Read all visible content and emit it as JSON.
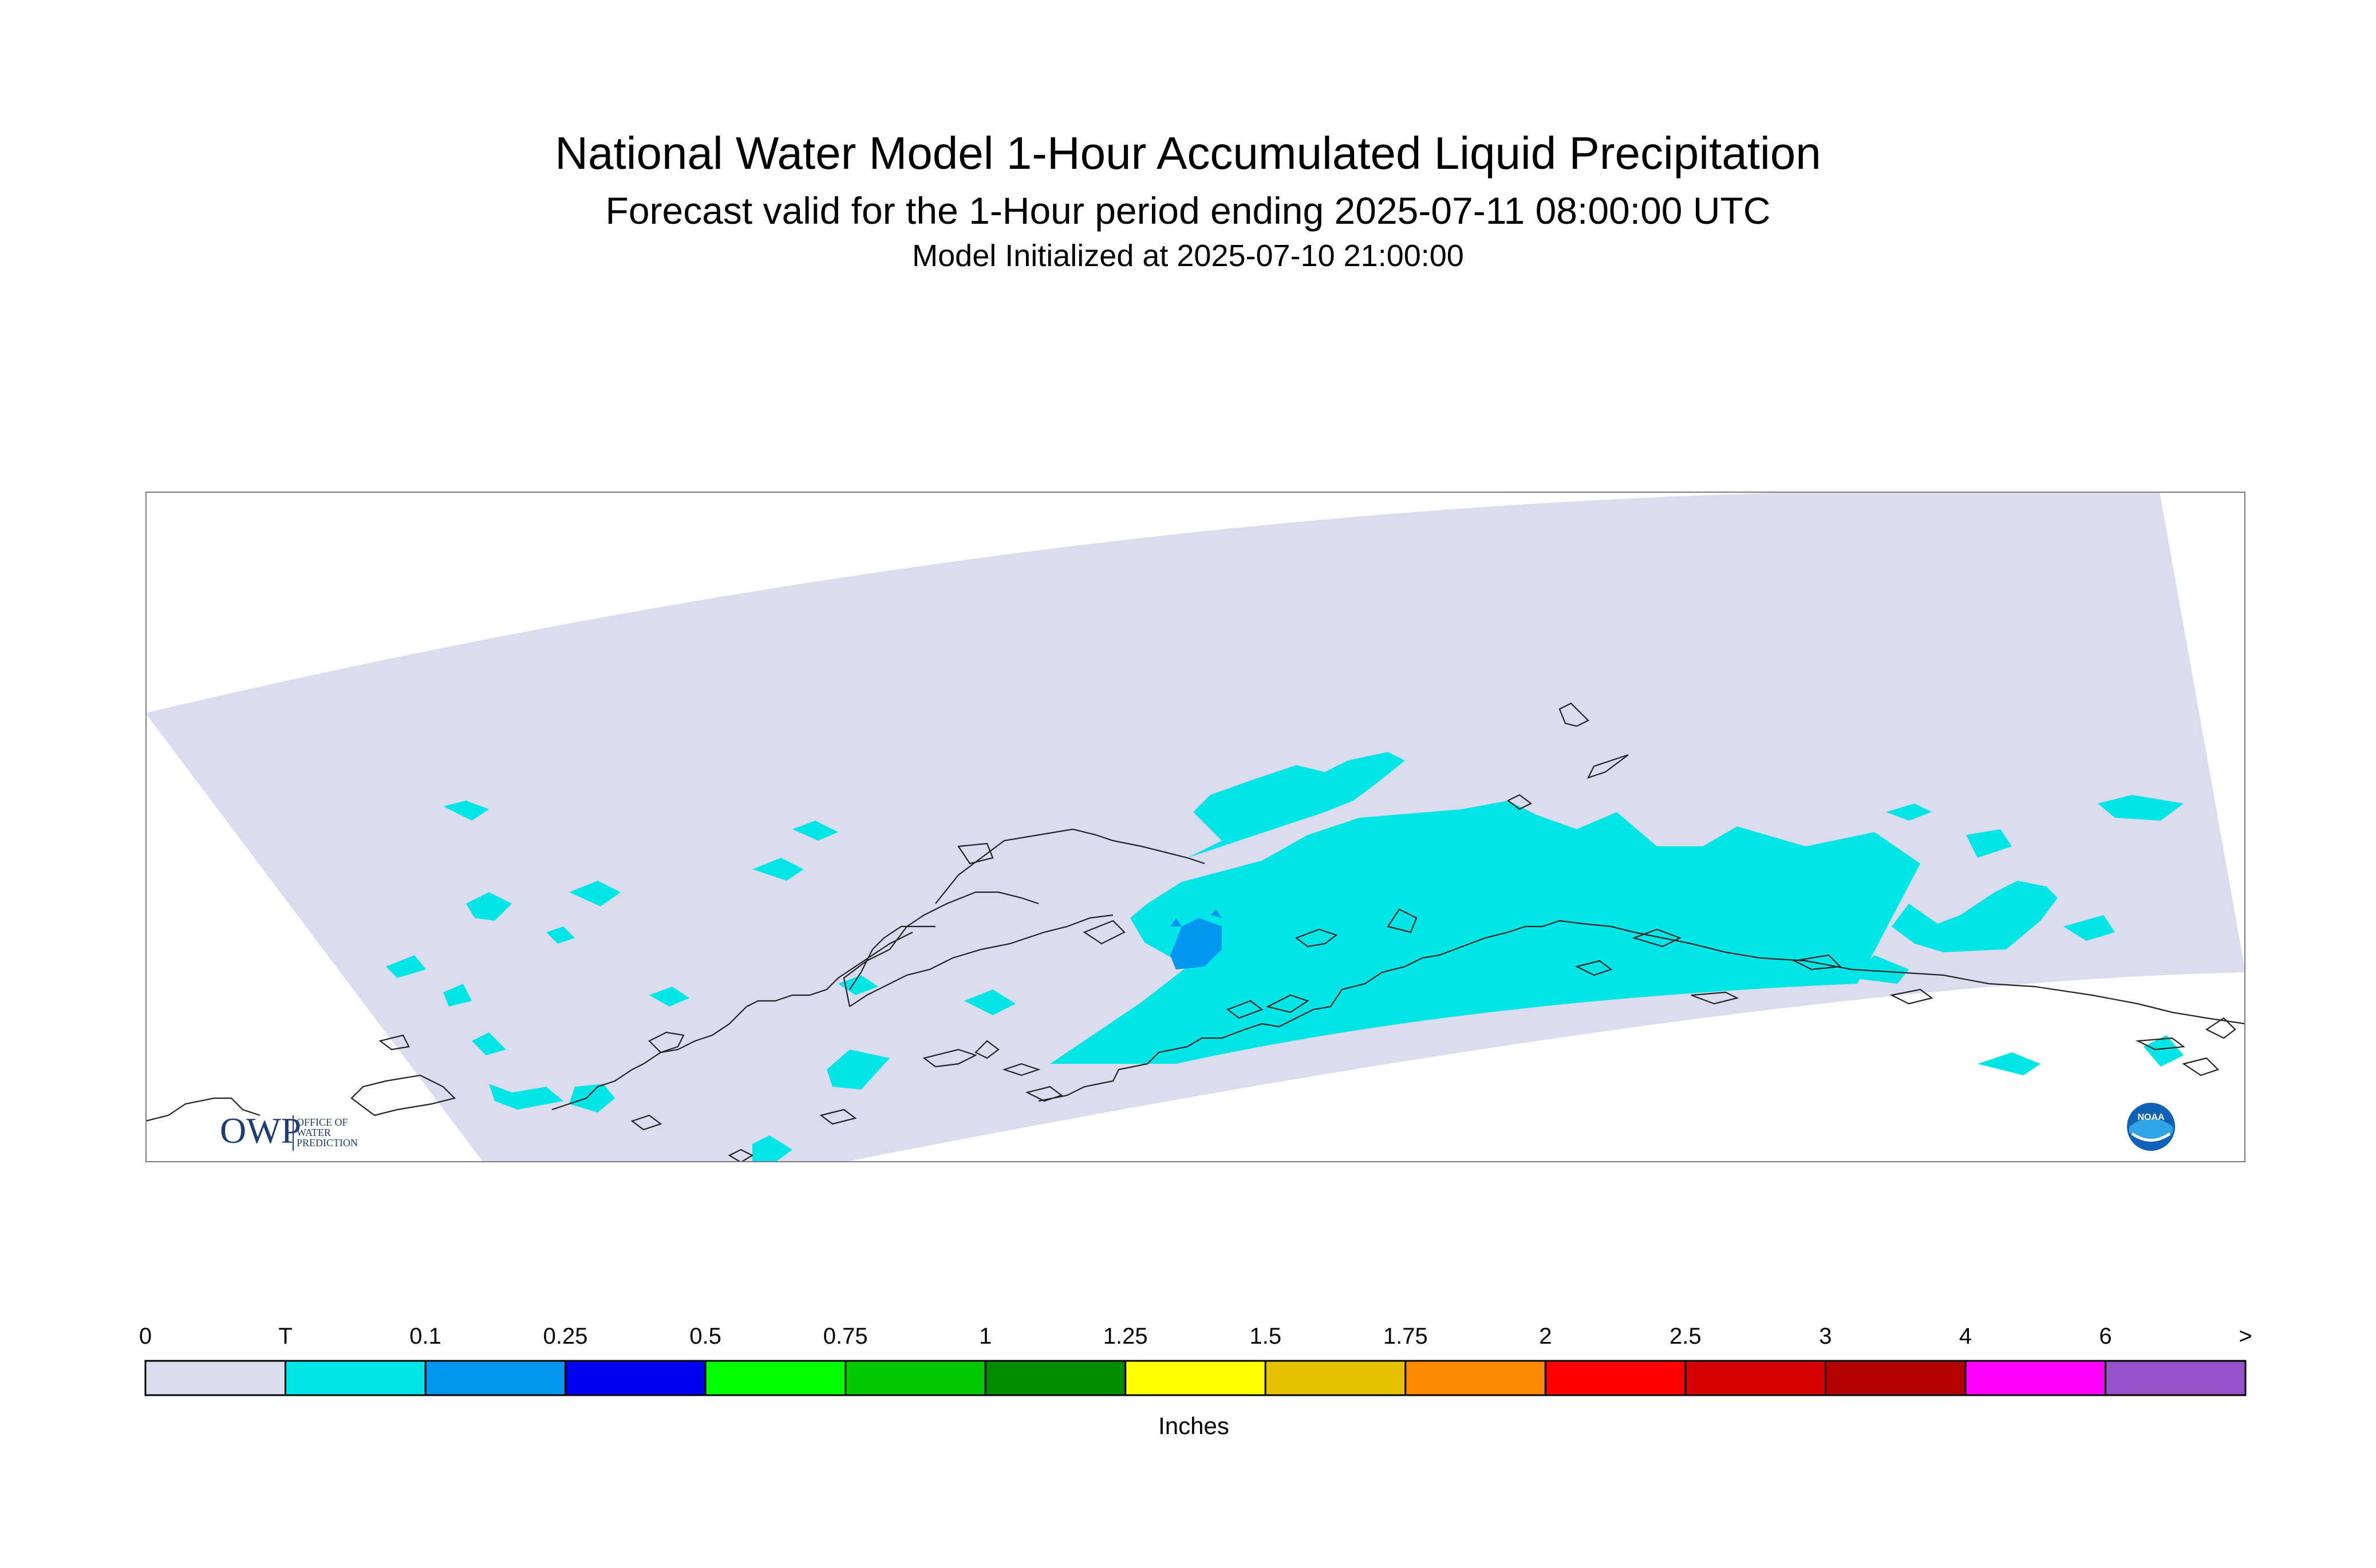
{
  "header": {
    "title": "National Water Model 1-Hour Accumulated Liquid Precipitation",
    "subtitle": "Forecast valid for the 1-Hour period ending 2025-07-11 08:00:00 UTC",
    "init_line": "Model Initialized at 2025-07-10 21:00:00"
  },
  "logos": {
    "owp_main": "OWP",
    "owp_line1": "OFFICE OF",
    "owp_line2": "WATER",
    "owp_line3": "PREDICTION",
    "noaa": "NOAA"
  },
  "colors": {
    "background": "#ffffff",
    "domain_fill": "#dcdcf0",
    "coastline": "#222222"
  },
  "legend": {
    "unit_label": "Inches",
    "tick_labels": [
      "0",
      "T",
      "0.1",
      "0.25",
      "0.5",
      "0.75",
      "1",
      "1.25",
      "1.5",
      "1.75",
      "2",
      "2.5",
      "3",
      "4",
      "6",
      ">"
    ],
    "colors": [
      "#dcdcf0",
      "#00e5e5",
      "#0096f0",
      "#0000f0",
      "#00ff00",
      "#00c800",
      "#008c00",
      "#ffff00",
      "#e6c300",
      "#ff8c00",
      "#ff0000",
      "#d70000",
      "#b40000",
      "#ff00ff",
      "#9650c8"
    ]
  },
  "precip_fields": [
    {
      "category": "trace",
      "color": "#00e5e5"
    },
    {
      "category": "0.1-0.25",
      "color": "#0096f0"
    }
  ]
}
